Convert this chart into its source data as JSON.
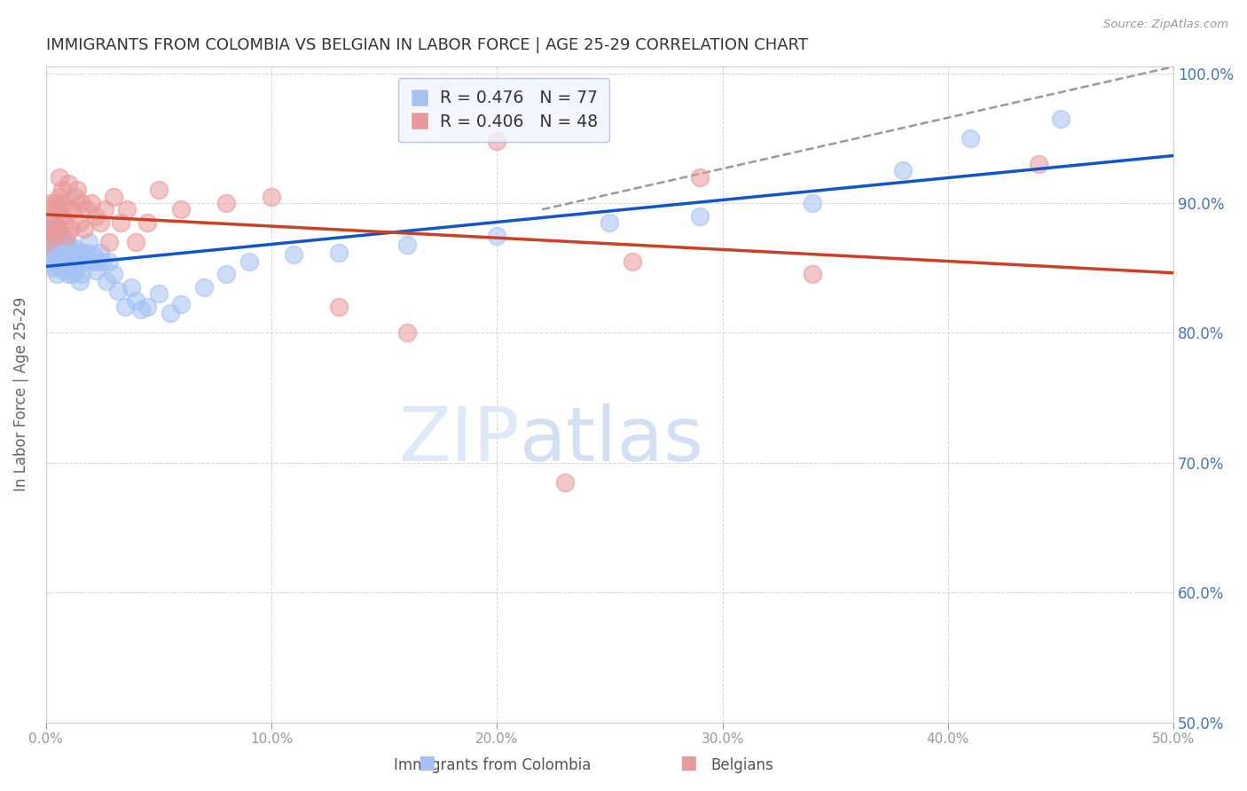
{
  "title": "IMMIGRANTS FROM COLOMBIA VS BELGIAN IN LABOR FORCE | AGE 25-29 CORRELATION CHART",
  "source": "Source: ZipAtlas.com",
  "ylabel": "In Labor Force | Age 25-29",
  "xlim": [
    0.0,
    0.5
  ],
  "ylim": [
    0.5,
    1.005
  ],
  "ytick_vals": [
    1.0,
    0.9,
    0.8,
    0.7,
    0.6,
    0.5
  ],
  "right_ytick_labels": [
    "100.0%",
    "90.0%",
    "80.0%",
    "70.0%",
    "60.0%",
    "50.0%"
  ],
  "xticks": [
    0.0,
    0.1,
    0.2,
    0.3,
    0.4,
    0.5
  ],
  "xtick_labels": [
    "0.0%",
    "10.0%",
    "20.0%",
    "30.0%",
    "40.0%",
    "50.0%"
  ],
  "colombia_R": 0.476,
  "colombia_N": 77,
  "belgian_R": 0.406,
  "belgian_N": 48,
  "colombia_color": "#a4c2f4",
  "belgian_color": "#ea9999",
  "colombia_line_color": "#1155cc",
  "belgian_line_color": "#cc4125",
  "dashed_line_color": "#999999",
  "colombia_x": [
    0.001,
    0.001,
    0.002,
    0.002,
    0.002,
    0.003,
    0.003,
    0.003,
    0.003,
    0.004,
    0.004,
    0.004,
    0.004,
    0.004,
    0.005,
    0.005,
    0.005,
    0.005,
    0.006,
    0.006,
    0.006,
    0.007,
    0.007,
    0.007,
    0.008,
    0.008,
    0.008,
    0.009,
    0.009,
    0.01,
    0.01,
    0.01,
    0.011,
    0.011,
    0.012,
    0.012,
    0.013,
    0.013,
    0.014,
    0.015,
    0.015,
    0.016,
    0.016,
    0.017,
    0.018,
    0.019,
    0.02,
    0.021,
    0.022,
    0.023,
    0.024,
    0.025,
    0.027,
    0.028,
    0.03,
    0.032,
    0.035,
    0.038,
    0.04,
    0.042,
    0.045,
    0.05,
    0.055,
    0.06,
    0.07,
    0.08,
    0.09,
    0.11,
    0.13,
    0.16,
    0.2,
    0.25,
    0.29,
    0.34,
    0.38,
    0.41,
    0.45
  ],
  "colombia_y": [
    0.87,
    0.855,
    0.86,
    0.875,
    0.88,
    0.85,
    0.86,
    0.87,
    0.885,
    0.855,
    0.86,
    0.865,
    0.875,
    0.885,
    0.845,
    0.855,
    0.865,
    0.88,
    0.85,
    0.86,
    0.87,
    0.85,
    0.862,
    0.875,
    0.848,
    0.86,
    0.872,
    0.852,
    0.865,
    0.845,
    0.855,
    0.868,
    0.85,
    0.865,
    0.845,
    0.862,
    0.848,
    0.865,
    0.855,
    0.84,
    0.858,
    0.845,
    0.862,
    0.855,
    0.862,
    0.87,
    0.855,
    0.86,
    0.848,
    0.855,
    0.862,
    0.855,
    0.84,
    0.855,
    0.845,
    0.832,
    0.82,
    0.835,
    0.825,
    0.818,
    0.82,
    0.83,
    0.815,
    0.822,
    0.835,
    0.845,
    0.855,
    0.86,
    0.862,
    0.868,
    0.875,
    0.885,
    0.89,
    0.9,
    0.925,
    0.95,
    0.965
  ],
  "belgian_x": [
    0.001,
    0.002,
    0.002,
    0.003,
    0.003,
    0.004,
    0.004,
    0.005,
    0.005,
    0.006,
    0.006,
    0.007,
    0.007,
    0.008,
    0.008,
    0.009,
    0.01,
    0.01,
    0.011,
    0.012,
    0.013,
    0.014,
    0.015,
    0.016,
    0.017,
    0.018,
    0.02,
    0.022,
    0.024,
    0.026,
    0.028,
    0.03,
    0.033,
    0.036,
    0.04,
    0.045,
    0.05,
    0.06,
    0.08,
    0.1,
    0.13,
    0.16,
    0.2,
    0.23,
    0.26,
    0.29,
    0.34,
    0.44
  ],
  "belgian_y": [
    0.87,
    0.88,
    0.9,
    0.885,
    0.895,
    0.875,
    0.9,
    0.88,
    0.895,
    0.905,
    0.92,
    0.89,
    0.91,
    0.885,
    0.9,
    0.875,
    0.895,
    0.915,
    0.88,
    0.895,
    0.905,
    0.91,
    0.885,
    0.9,
    0.88,
    0.895,
    0.9,
    0.89,
    0.885,
    0.895,
    0.87,
    0.905,
    0.885,
    0.895,
    0.87,
    0.885,
    0.91,
    0.895,
    0.9,
    0.905,
    0.82,
    0.8,
    0.948,
    0.685,
    0.855,
    0.92,
    0.845,
    0.93
  ],
  "dashed_line_x": [
    0.22,
    0.5
  ],
  "dashed_line_y": [
    0.895,
    1.005
  ],
  "background_color": "#ffffff",
  "grid_color": "#cccccc",
  "title_color": "#333333",
  "label_color": "#666666",
  "right_axis_color": "#4472c4",
  "watermark_zip": "ZIP",
  "watermark_atlas": "atlas",
  "watermark_color": "#dde8f8"
}
